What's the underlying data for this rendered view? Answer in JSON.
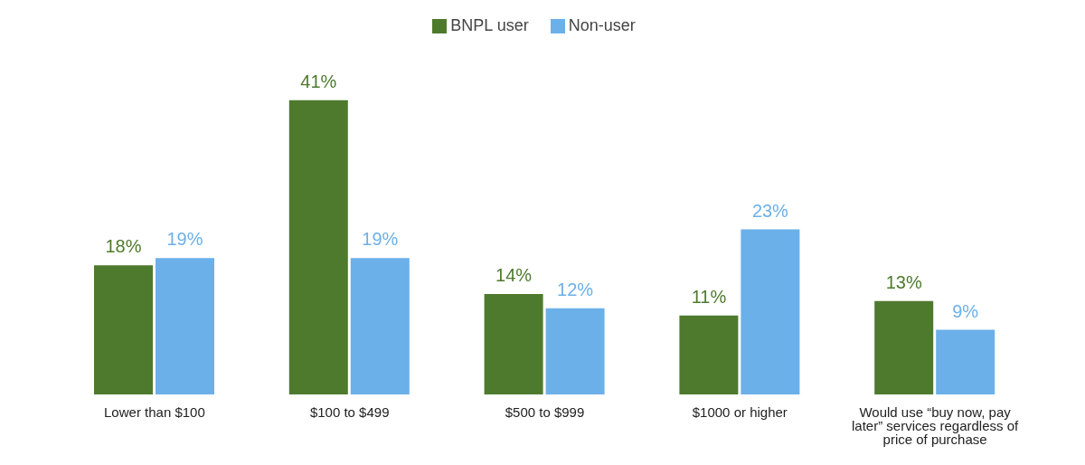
{
  "chart_data": {
    "type": "bar",
    "categories": [
      "Lower than $100",
      "$100 to $499",
      "$500 to $999",
      "$1000 or higher",
      "Would use “buy now, pay later” services regardless of price of purchase"
    ],
    "series": [
      {
        "name": "BNPL user",
        "color": "#4e7a2e",
        "values": [
          18,
          41,
          14,
          11,
          13
        ],
        "value_labels": [
          "18%",
          "41%",
          "14%",
          "11%",
          "13%"
        ]
      },
      {
        "name": "Non-user",
        "color": "#6cb0ea",
        "values": [
          19,
          19,
          12,
          23,
          9
        ],
        "value_labels": [
          "19%",
          "19%",
          "12%",
          "23%",
          "9%"
        ]
      }
    ],
    "legend": "top",
    "grid": false
  }
}
